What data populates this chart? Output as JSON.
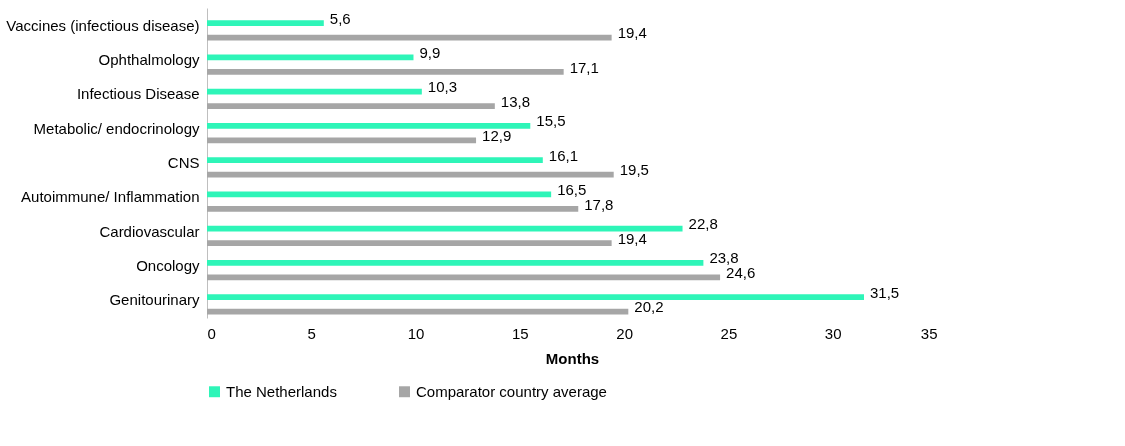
{
  "chart_data": {
    "type": "bar",
    "orientation": "horizontal",
    "xlabel": "Months",
    "categories": [
      "Vaccines (infectious disease)",
      "Ophthalmology",
      "Infectious Disease",
      "Metabolic/ endocrinology",
      "CNS",
      "Autoimmune/ Inflammation",
      "Cardiovascular",
      "Oncology",
      "Genitourinary"
    ],
    "series": [
      {
        "name": "The Netherlands",
        "color": "#2ef5b8",
        "values": [
          5.6,
          9.9,
          10.3,
          15.5,
          16.1,
          16.5,
          22.8,
          23.8,
          31.5
        ],
        "value_labels": [
          "5,6",
          "9,9",
          "10,3",
          "15,5",
          "16,1",
          "16,5",
          "22,8",
          "23,8",
          "31,5"
        ]
      },
      {
        "name": "Comparator country average",
        "color": "#a6a6a6",
        "values": [
          19.4,
          17.1,
          13.8,
          12.9,
          19.5,
          17.8,
          19.4,
          24.6,
          20.2
        ],
        "value_labels": [
          "19,4",
          "17,1",
          "13,8",
          "12,9",
          "19,5",
          "17,8",
          "19,4",
          "24,6",
          "20,2"
        ]
      }
    ],
    "xlim": [
      0,
      35
    ],
    "xticks": [
      0,
      5,
      10,
      15,
      20,
      25,
      30,
      35
    ],
    "grid": false,
    "legend": "bottom"
  }
}
